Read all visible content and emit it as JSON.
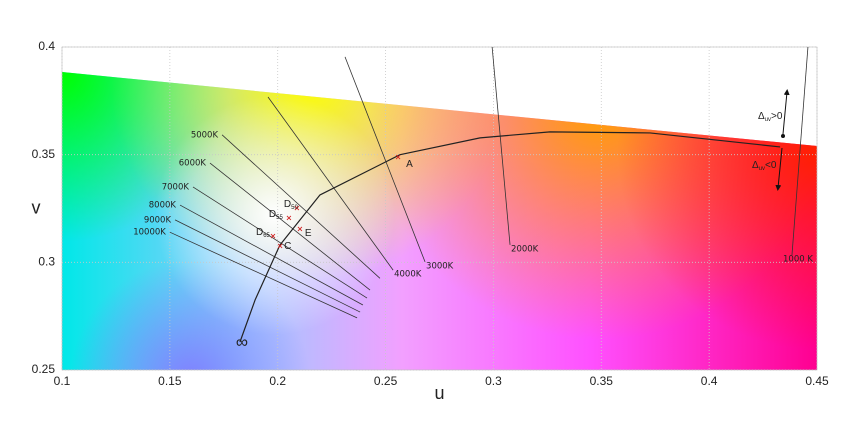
{
  "chart_data": {
    "type": "line",
    "xlabel": "u",
    "ylabel": "v",
    "xlim": [
      0.1,
      0.45
    ],
    "ylim": [
      0.25,
      0.4
    ],
    "xticks": [
      0.1,
      0.15,
      0.2,
      0.25,
      0.3,
      0.35,
      0.4,
      0.45
    ],
    "yticks": [
      0.25,
      0.3,
      0.35,
      0.4
    ],
    "grid": true,
    "gamut": {
      "u": [
        0.1,
        0.45
      ],
      "v": [
        0.3884,
        0.354
      ]
    },
    "locus": {
      "color": "#222222",
      "u": [
        0.1825,
        0.1895,
        0.201,
        0.2196,
        0.2567,
        0.2938,
        0.3262,
        0.3726,
        0.4329
      ],
      "v": [
        0.263,
        0.2825,
        0.308,
        0.3313,
        0.35,
        0.3578,
        0.3606,
        0.3601,
        0.3536
      ]
    },
    "infinity_label": "∞",
    "isotherms": [
      {
        "label": "10000K",
        "u": [
          0.15,
          0.2368
        ],
        "v": [
          0.314,
          0.2742
        ]
      },
      {
        "label": "9000K",
        "u": [
          0.1524,
          0.2382
        ],
        "v": [
          0.3197,
          0.2769
        ]
      },
      {
        "label": "8000K",
        "u": [
          0.1547,
          0.2395
        ],
        "v": [
          0.3266,
          0.2802
        ]
      },
      {
        "label": "7000K",
        "u": [
          0.1607,
          0.2414
        ],
        "v": [
          0.335,
          0.2834
        ]
      },
      {
        "label": "6000K",
        "u": [
          0.1686,
          0.2428
        ],
        "v": [
          0.3461,
          0.2871
        ]
      },
      {
        "label": "5000K",
        "u": [
          0.1742,
          0.2474
        ],
        "v": [
          0.3592,
          0.2926
        ]
      },
      {
        "label": "4000K",
        "u": [
          0.1955,
          0.2535
        ],
        "v": [
          0.3768,
          0.2964
        ]
      },
      {
        "label": "3000K",
        "u": [
          0.2312,
          0.2683
        ],
        "v": [
          0.3954,
          0.3002
        ]
      },
      {
        "label": "2000K",
        "u": [
          0.2994,
          0.3077
        ],
        "v": [
          0.4,
          0.3081
        ]
      },
      {
        "label": "1000 K",
        "u": [
          0.4458,
          0.4384
        ],
        "v": [
          0.4,
          0.3034
        ]
      }
    ],
    "points": [
      {
        "name": "A",
        "sub": "",
        "u": 0.2558,
        "v": 0.3489
      },
      {
        "name": "D",
        "sub": "50",
        "u": 0.2089,
        "v": 0.3252
      },
      {
        "name": "D",
        "sub": "55",
        "u": 0.2052,
        "v": 0.3206
      },
      {
        "name": "E",
        "sub": "",
        "u": 0.2103,
        "v": 0.3155
      },
      {
        "name": "D",
        "sub": "65",
        "u": 0.1978,
        "v": 0.3122
      },
      {
        "name": "C",
        "sub": "",
        "u": 0.2011,
        "v": 0.3076
      }
    ],
    "duv": [
      {
        "symbol": "Δ",
        "sub": "uv",
        "rest": ">0"
      },
      {
        "symbol": "Δ",
        "sub": "uv",
        "rest": "<0"
      }
    ]
  }
}
